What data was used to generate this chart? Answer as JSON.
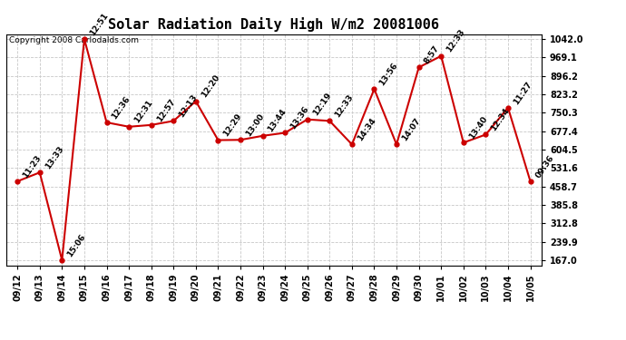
{
  "title": "Solar Radiation Daily High W/m2 20081006",
  "copyright": "Copyright 2008 Carlodalds.com",
  "x_labels": [
    "09/12",
    "09/13",
    "09/14",
    "09/15",
    "09/16",
    "09/17",
    "09/18",
    "09/19",
    "09/20",
    "09/21",
    "09/22",
    "09/23",
    "09/24",
    "09/25",
    "09/26",
    "09/27",
    "09/28",
    "09/29",
    "09/30",
    "10/01",
    "10/02",
    "10/03",
    "10/04",
    "10/05"
  ],
  "y_values": [
    479,
    514,
    167,
    1042,
    712,
    695,
    702,
    718,
    796,
    642,
    643,
    659,
    671,
    724,
    718,
    625,
    844,
    625,
    930,
    975,
    632,
    664,
    770,
    479
  ],
  "time_labels": [
    "11:23",
    "13:33",
    "15:06",
    "12:51",
    "12:36",
    "12:31",
    "12:57",
    "12:13",
    "12:20",
    "12:29",
    "13:00",
    "13:44",
    "13:36",
    "12:19",
    "12:33",
    "14:34",
    "13:56",
    "14:07",
    "8:57",
    "12:33",
    "13:40",
    "12:34",
    "11:27",
    "09:36"
  ],
  "y_min": 147.0,
  "y_max": 1062.0,
  "y_ticks": [
    167.0,
    239.9,
    312.8,
    385.8,
    458.7,
    531.6,
    604.5,
    677.4,
    750.3,
    823.2,
    896.2,
    969.1,
    1042.0
  ],
  "line_color": "#cc0000",
  "marker_color": "#cc0000",
  "bg_color": "#ffffff",
  "grid_color": "#c8c8c8",
  "title_fontsize": 11,
  "label_fontsize": 7,
  "annotation_fontsize": 6.5,
  "copyright_fontsize": 6.5
}
